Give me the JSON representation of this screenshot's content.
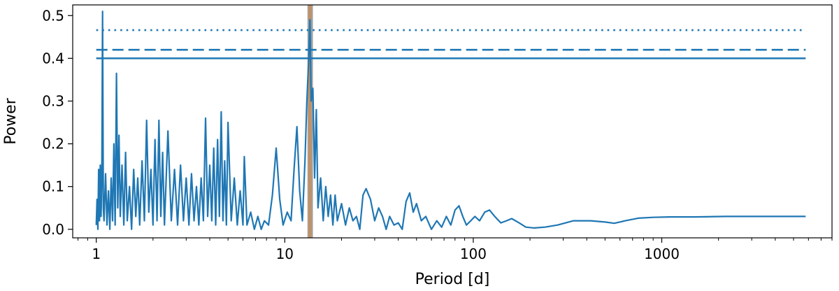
{
  "chart_data": {
    "type": "line",
    "xlabel": "Period [d]",
    "ylabel": "Power",
    "x_scale": "log",
    "xlim": [
      0.75,
      8000
    ],
    "ylim": [
      -0.02,
      0.525
    ],
    "x_major_ticks": [
      {
        "value": 1,
        "label": "1"
      },
      {
        "value": 10,
        "label": "10"
      },
      {
        "value": 100,
        "label": "100"
      },
      {
        "value": 1000,
        "label": "1000"
      }
    ],
    "y_ticks": [
      {
        "value": 0.0,
        "label": "0.0"
      },
      {
        "value": 0.1,
        "label": "0.1"
      },
      {
        "value": 0.2,
        "label": "0.2"
      },
      {
        "value": 0.3,
        "label": "0.3"
      },
      {
        "value": 0.4,
        "label": "0.4"
      },
      {
        "value": 0.5,
        "label": "0.5"
      }
    ],
    "grid": false,
    "colors": {
      "series": "#1f77b4",
      "marker_line": "#ff7f0e",
      "band": "#7f7f7f"
    },
    "thresholds": [
      {
        "value": 0.466,
        "style": "dotted"
      },
      {
        "value": 0.42,
        "style": "dashed"
      },
      {
        "value": 0.4,
        "style": "solid"
      }
    ],
    "threshold_x_range": [
      1.0,
      5800
    ],
    "highlight_period": 13.6,
    "highlight_band": [
      13.2,
      14.1
    ],
    "series": [
      {
        "points": [
          [
            1.0,
            0.01
          ],
          [
            1.01,
            0.07
          ],
          [
            1.02,
            0.0
          ],
          [
            1.03,
            0.14
          ],
          [
            1.04,
            0.02
          ],
          [
            1.05,
            0.15
          ],
          [
            1.06,
            0.03
          ],
          [
            1.07,
            0.11
          ],
          [
            1.08,
            0.51
          ],
          [
            1.09,
            0.05
          ],
          [
            1.1,
            0.02
          ],
          [
            1.12,
            0.13
          ],
          [
            1.14,
            0.01
          ],
          [
            1.16,
            0.09
          ],
          [
            1.18,
            0.0
          ],
          [
            1.2,
            0.12
          ],
          [
            1.22,
            0.02
          ],
          [
            1.24,
            0.2
          ],
          [
            1.26,
            0.01
          ],
          [
            1.28,
            0.365
          ],
          [
            1.3,
            0.05
          ],
          [
            1.32,
            0.22
          ],
          [
            1.34,
            0.03
          ],
          [
            1.37,
            0.15
          ],
          [
            1.4,
            0.01
          ],
          [
            1.43,
            0.18
          ],
          [
            1.46,
            0.02
          ],
          [
            1.5,
            0.1
          ],
          [
            1.54,
            0.0
          ],
          [
            1.58,
            0.14
          ],
          [
            1.62,
            0.03
          ],
          [
            1.66,
            0.12
          ],
          [
            1.7,
            0.01
          ],
          [
            1.75,
            0.16
          ],
          [
            1.8,
            0.02
          ],
          [
            1.85,
            0.255
          ],
          [
            1.9,
            0.04
          ],
          [
            1.95,
            0.14
          ],
          [
            2.0,
            0.01
          ],
          [
            2.05,
            0.21
          ],
          [
            2.1,
            0.02
          ],
          [
            2.15,
            0.255
          ],
          [
            2.2,
            0.03
          ],
          [
            2.25,
            0.18
          ],
          [
            2.3,
            0.01
          ],
          [
            2.4,
            0.23
          ],
          [
            2.5,
            0.02
          ],
          [
            2.6,
            0.14
          ],
          [
            2.7,
            0.01
          ],
          [
            2.8,
            0.15
          ],
          [
            2.9,
            0.02
          ],
          [
            3.0,
            0.12
          ],
          [
            3.1,
            0.01
          ],
          [
            3.2,
            0.13
          ],
          [
            3.3,
            0.02
          ],
          [
            3.4,
            0.1
          ],
          [
            3.5,
            0.01
          ],
          [
            3.6,
            0.12
          ],
          [
            3.7,
            0.02
          ],
          [
            3.8,
            0.26
          ],
          [
            3.9,
            0.03
          ],
          [
            4.0,
            0.15
          ],
          [
            4.1,
            0.02
          ],
          [
            4.2,
            0.19
          ],
          [
            4.3,
            0.01
          ],
          [
            4.4,
            0.21
          ],
          [
            4.5,
            0.03
          ],
          [
            4.6,
            0.275
          ],
          [
            4.7,
            0.02
          ],
          [
            4.8,
            0.16
          ],
          [
            4.9,
            0.01
          ],
          [
            5.0,
            0.25
          ],
          [
            5.2,
            0.02
          ],
          [
            5.4,
            0.12
          ],
          [
            5.6,
            0.01
          ],
          [
            5.8,
            0.09
          ],
          [
            6.0,
            0.01
          ],
          [
            6.1,
            0.17
          ],
          [
            6.3,
            0.01
          ],
          [
            6.6,
            0.04
          ],
          [
            6.9,
            0.0
          ],
          [
            7.2,
            0.03
          ],
          [
            7.5,
            0.0
          ],
          [
            7.8,
            0.02
          ],
          [
            8.2,
            0.01
          ],
          [
            8.6,
            0.08
          ],
          [
            9.0,
            0.19
          ],
          [
            9.4,
            0.07
          ],
          [
            9.8,
            0.01
          ],
          [
            10.3,
            0.04
          ],
          [
            10.8,
            0.02
          ],
          [
            11.2,
            0.14
          ],
          [
            11.6,
            0.24
          ],
          [
            12.0,
            0.09
          ],
          [
            12.4,
            0.02
          ],
          [
            12.8,
            0.16
          ],
          [
            13.1,
            0.3
          ],
          [
            13.4,
            0.4
          ],
          [
            13.6,
            0.49
          ],
          [
            13.8,
            0.3
          ],
          [
            14.1,
            0.33
          ],
          [
            14.4,
            0.12
          ],
          [
            14.7,
            0.28
          ],
          [
            15.0,
            0.05
          ],
          [
            15.5,
            0.12
          ],
          [
            16.0,
            0.02
          ],
          [
            16.5,
            0.1
          ],
          [
            17.0,
            0.03
          ],
          [
            17.5,
            0.08
          ],
          [
            18.0,
            0.01
          ],
          [
            18.5,
            0.08
          ],
          [
            19.0,
            0.02
          ],
          [
            20.0,
            0.06
          ],
          [
            21.0,
            0.01
          ],
          [
            22.0,
            0.05
          ],
          [
            23.0,
            0.02
          ],
          [
            24.0,
            0.03
          ],
          [
            25.0,
            0.0
          ],
          [
            26.0,
            0.08
          ],
          [
            27.0,
            0.095
          ],
          [
            28.5,
            0.07
          ],
          [
            30.0,
            0.02
          ],
          [
            31.5,
            0.05
          ],
          [
            33.0,
            0.03
          ],
          [
            34.5,
            0.0
          ],
          [
            36.0,
            0.03
          ],
          [
            38.0,
            0.01
          ],
          [
            40.0,
            0.015
          ],
          [
            42.0,
            0.0
          ],
          [
            44.0,
            0.065
          ],
          [
            46.0,
            0.085
          ],
          [
            48.0,
            0.04
          ],
          [
            50.0,
            0.06
          ],
          [
            53.0,
            0.02
          ],
          [
            56.0,
            0.03
          ],
          [
            60.0,
            0.0
          ],
          [
            64.0,
            0.02
          ],
          [
            68.0,
            0.005
          ],
          [
            72.0,
            0.03
          ],
          [
            76.0,
            0.01
          ],
          [
            80.0,
            0.045
          ],
          [
            84.0,
            0.055
          ],
          [
            88.0,
            0.03
          ],
          [
            92.0,
            0.01
          ],
          [
            97.0,
            0.02
          ],
          [
            102.0,
            0.03
          ],
          [
            108.0,
            0.02
          ],
          [
            115.0,
            0.04
          ],
          [
            122.0,
            0.045
          ],
          [
            130.0,
            0.03
          ],
          [
            140.0,
            0.015
          ],
          [
            150.0,
            0.02
          ],
          [
            160.0,
            0.025
          ],
          [
            175.0,
            0.015
          ],
          [
            190.0,
            0.005
          ],
          [
            210.0,
            0.003
          ],
          [
            240.0,
            0.005
          ],
          [
            280.0,
            0.01
          ],
          [
            340.0,
            0.02
          ],
          [
            420.0,
            0.02
          ],
          [
            500.0,
            0.017
          ],
          [
            560.0,
            0.014
          ],
          [
            640.0,
            0.02
          ],
          [
            750.0,
            0.026
          ],
          [
            900.0,
            0.028
          ],
          [
            1100.0,
            0.029
          ],
          [
            1500.0,
            0.029
          ],
          [
            2200.0,
            0.03
          ],
          [
            3500.0,
            0.03
          ],
          [
            5800.0,
            0.03
          ]
        ]
      }
    ]
  }
}
